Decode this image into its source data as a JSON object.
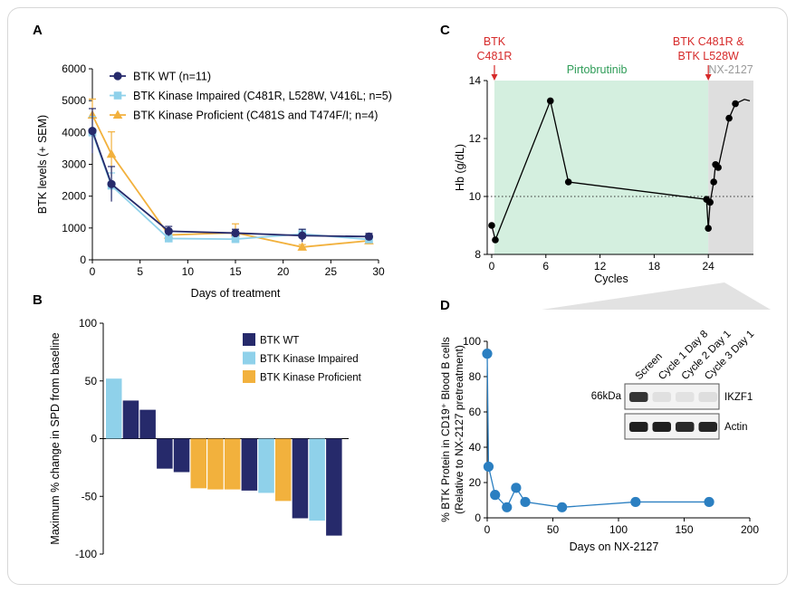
{
  "panels": {
    "a": "A",
    "b": "B",
    "c": "C",
    "d": "D"
  },
  "chart_data": [
    {
      "panel": "A",
      "type": "line",
      "xlabel": "Days of treatment",
      "ylabel": "BTK levels (+ SEM)",
      "xlim": [
        0,
        30
      ],
      "ylim": [
        0,
        6000
      ],
      "xticks": [
        0,
        5,
        10,
        15,
        20,
        25,
        30
      ],
      "yticks": [
        0,
        1000,
        2000,
        3000,
        4000,
        5000,
        6000
      ],
      "legend_position": "top-left",
      "series": [
        {
          "name": "BTK WT (n=11)",
          "color": "#262a6b",
          "marker": "circle",
          "x": [
            0,
            2,
            8,
            15,
            22,
            29
          ],
          "y": [
            4050,
            2380,
            900,
            840,
            760,
            730
          ],
          "err": [
            700,
            550,
            150,
            120,
            200,
            100
          ]
        },
        {
          "name": "BTK Kinase Impaired (C481R, L528W, V416L; n=5)",
          "color": "#8fd1ea",
          "marker": "square",
          "x": [
            0,
            2,
            8,
            15,
            22,
            29
          ],
          "y": [
            4000,
            2330,
            670,
            650,
            810,
            640
          ],
          "err": [
            500,
            400,
            120,
            100,
            150,
            80
          ]
        },
        {
          "name": "BTK Kinase Proficient (C481S and T474F/I; n=4)",
          "color": "#f2b13d",
          "marker": "triangle",
          "x": [
            0,
            2,
            8,
            15,
            22,
            29
          ],
          "y": [
            4550,
            3320,
            780,
            850,
            400,
            600
          ],
          "err": [
            500,
            700,
            100,
            280,
            80,
            80
          ]
        }
      ]
    },
    {
      "panel": "B",
      "type": "bar",
      "ylabel": "Maximum % change in SPD from baseline",
      "ylim": [
        -100,
        100
      ],
      "yticks": [
        -100,
        -50,
        0,
        50,
        100
      ],
      "legend_position": "top-right",
      "legend": [
        {
          "name": "BTK WT",
          "color": "#262a6b"
        },
        {
          "name": "BTK Kinase Impaired",
          "color": "#8fd1ea"
        },
        {
          "name": "BTK Kinase Proficient",
          "color": "#f2b13d"
        }
      ],
      "bars": [
        {
          "group": "BTK Kinase Impaired",
          "value": 52
        },
        {
          "group": "BTK WT",
          "value": 33
        },
        {
          "group": "BTK WT",
          "value": 25
        },
        {
          "group": "BTK WT",
          "value": -26
        },
        {
          "group": "BTK WT",
          "value": -29
        },
        {
          "group": "BTK Kinase Proficient",
          "value": -43
        },
        {
          "group": "BTK Kinase Proficient",
          "value": -44
        },
        {
          "group": "BTK Kinase Proficient",
          "value": -44
        },
        {
          "group": "BTK WT",
          "value": -45
        },
        {
          "group": "BTK Kinase Impaired",
          "value": -47
        },
        {
          "group": "BTK Kinase Proficient",
          "value": -54
        },
        {
          "group": "BTK WT",
          "value": -69
        },
        {
          "group": "BTK Kinase Impaired",
          "value": -71
        },
        {
          "group": "BTK WT",
          "value": -84
        }
      ]
    },
    {
      "panel": "C",
      "type": "line",
      "xlabel": "Cycles",
      "ylabel": "Hb (g/dL)",
      "xlim": [
        -0.5,
        29
      ],
      "ylim": [
        8,
        14
      ],
      "xticks": [
        0,
        6,
        12,
        18,
        24
      ],
      "yticks": [
        8,
        10,
        12,
        14
      ],
      "reference_line": 10,
      "regions": [
        {
          "label": "Pirtobrutinib",
          "x0": 0.3,
          "x1": 24,
          "color": "#d4efdf",
          "label_color": "#2e9c57"
        },
        {
          "label": "NX-2127",
          "x0": 24,
          "x1": 29,
          "color": "#dedede",
          "label_color": "#9a9a9a"
        }
      ],
      "annotations": [
        {
          "lines": [
            "BTK",
            "C481R"
          ],
          "x": 0.3,
          "color": "#d62a2a"
        },
        {
          "lines": [
            "BTK C481R &",
            "BTK L528W"
          ],
          "x": 24,
          "color": "#d62a2a"
        }
      ],
      "series": [
        {
          "name": "",
          "color": "#000000",
          "x": [
            0,
            0.4,
            6.5,
            8.5,
            23.8,
            24.0,
            24.2,
            24.6,
            24.8,
            25.1,
            26.3,
            27.0
          ],
          "y": [
            9.0,
            8.5,
            13.3,
            10.5,
            9.9,
            8.9,
            9.8,
            10.5,
            11.1,
            11.0,
            12.7,
            13.2
          ],
          "tail_x": [
            27.0,
            28.0,
            28.6
          ],
          "tail_y": [
            13.2,
            13.35,
            13.3
          ]
        }
      ]
    },
    {
      "panel": "D",
      "type": "line",
      "xlabel": "Days on NX-2127",
      "ylabel_lines": [
        "% BTK Protein in CD19⁺ Blood B cells",
        "(Relative to NX-2127 pretreatment)"
      ],
      "xlim": [
        0,
        200
      ],
      "ylim": [
        0,
        100
      ],
      "xticks": [
        0,
        50,
        100,
        150,
        200
      ],
      "yticks": [
        0,
        20,
        40,
        60,
        80,
        100
      ],
      "series": [
        {
          "name": "",
          "color": "#2b7fc1",
          "x": [
            0,
            1,
            6,
            15,
            22,
            29,
            57,
            113,
            169
          ],
          "y": [
            93,
            29,
            13,
            6,
            17,
            9,
            6,
            9,
            9
          ]
        }
      ],
      "blot": {
        "lane_labels": [
          "Screen",
          "Cycle 1 Day 8",
          "Cycle 2 Day 1",
          "Cycle 3 Day 1"
        ],
        "marker": "66kDa",
        "rows": [
          {
            "label": "IKZF1",
            "intensity": [
              0.85,
              0.05,
              0.04,
              0.06
            ]
          },
          {
            "label": "Actin",
            "intensity": [
              0.95,
              0.95,
              0.9,
              0.92
            ]
          }
        ]
      }
    }
  ]
}
